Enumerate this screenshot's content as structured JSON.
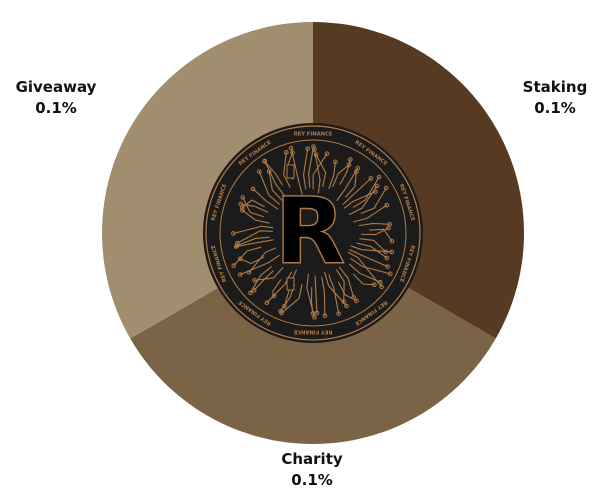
{
  "chart_data": {
    "type": "pie",
    "title": "",
    "slices": [
      {
        "label": "Staking",
        "value_label": "0.1%",
        "value": 0.1,
        "color": "#563a21"
      },
      {
        "label": "Charity",
        "value_label": "0.1%",
        "value": 0.1,
        "color": "#7b6446"
      },
      {
        "label": "Giveaway",
        "value_label": "0.1%",
        "value": 0.1,
        "color": "#a08e6e"
      }
    ],
    "legend": "none"
  },
  "center_logo": {
    "icon": "rey-finance-coin-icon",
    "letter": "R",
    "ring_text": "REY FINANCE",
    "ring_color": "#b07a48",
    "coin_color": "#1b1b1b"
  }
}
